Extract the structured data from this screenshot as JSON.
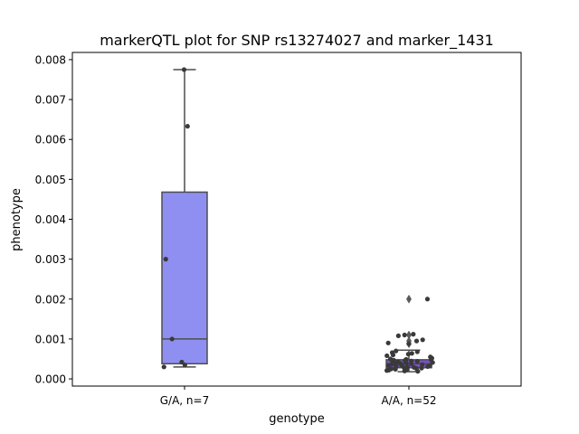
{
  "chart_data": {
    "type": "box",
    "title": "markerQTL plot for SNP rs13274027 and marker_1431",
    "xlabel": "genotype",
    "ylabel": "phenotype",
    "ylim": [
      -0.00018,
      0.00818
    ],
    "yticks": [
      0.0,
      0.001,
      0.002,
      0.003,
      0.004,
      0.005,
      0.006,
      0.007,
      0.008
    ],
    "ytick_labels": [
      "0.000",
      "0.001",
      "0.002",
      "0.003",
      "0.004",
      "0.005",
      "0.006",
      "0.007",
      "0.008"
    ],
    "categories": [
      "G/A, n=7",
      "A/A, n=52"
    ],
    "groups": [
      {
        "label": "G/A, n=7",
        "color": "#8f8ff2",
        "box": {
          "whisker_low": 0.0003,
          "q1": 0.00038,
          "median": 0.001,
          "q3": 0.00468,
          "whisker_high": 0.00775
        },
        "outliers": [],
        "points": [
          0.00775,
          0.00633,
          0.003,
          0.001,
          0.00042,
          0.00035,
          0.0003
        ]
      },
      {
        "label": "A/A, n=52",
        "color": "#7b52c8",
        "box": {
          "whisker_low": 0.00018,
          "q1": 0.00028,
          "median": 0.00038,
          "q3": 0.00048,
          "whisker_high": 0.00072
        },
        "outliers": [
          0.002,
          0.0011,
          0.00095,
          0.00088
        ],
        "points": [
          0.002,
          0.00112,
          0.0011,
          0.00108,
          0.00098,
          0.00095,
          0.0009,
          0.00088,
          0.0007,
          0.00068,
          0.00066,
          0.00064,
          0.00062,
          0.0006,
          0.00058,
          0.00055,
          0.00052,
          0.0005,
          0.00049,
          0.00048,
          0.00047,
          0.00046,
          0.00045,
          0.00044,
          0.00043,
          0.00042,
          0.00041,
          0.0004,
          0.00039,
          0.00038,
          0.00038,
          0.00037,
          0.00036,
          0.00035,
          0.00034,
          0.00034,
          0.00033,
          0.00032,
          0.00031,
          0.0003,
          0.0003,
          0.00029,
          0.00028,
          0.00027,
          0.00026,
          0.00025,
          0.00024,
          0.00023,
          0.00022,
          0.00021,
          0.0002,
          0.00019
        ]
      }
    ],
    "grid": false,
    "legend": "none"
  }
}
